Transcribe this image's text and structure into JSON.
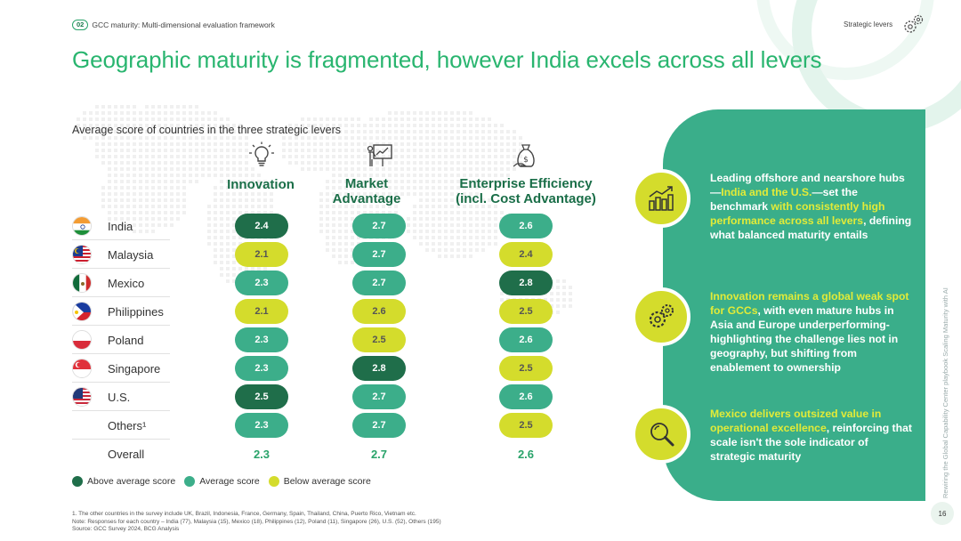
{
  "header": {
    "chapter_badge": "02",
    "chapter_title": "GCC maturity: Multi-dimensional evaluation framework",
    "section": "Strategic levers",
    "section_icon": "gears-icon"
  },
  "title": "Geographic maturity is fragmented, however India excels across all levers",
  "subtitle": "Average score of countries in the three strategic levers",
  "levers": [
    {
      "name": "Innovation",
      "icon": "lightbulb-icon"
    },
    {
      "name": "Market\nAdvantage",
      "line1": "Market",
      "line2": "Advantage",
      "icon": "presentation-chart-icon"
    },
    {
      "name": "Enterprise Efficiency (incl. Cost Advantage)",
      "line1": "Enterprise Efficiency",
      "line2": "(incl. Cost Advantage)",
      "icon": "money-bag-icon"
    }
  ],
  "countries": [
    {
      "name": "India",
      "flag": "india-flag",
      "scores": [
        {
          "value": "2.4",
          "level": "above"
        },
        {
          "value": "2.7",
          "level": "avg"
        },
        {
          "value": "2.6",
          "level": "avg"
        }
      ]
    },
    {
      "name": "Malaysia",
      "flag": "malaysia-flag",
      "scores": [
        {
          "value": "2.1",
          "level": "below"
        },
        {
          "value": "2.7",
          "level": "avg"
        },
        {
          "value": "2.4",
          "level": "below"
        }
      ]
    },
    {
      "name": "Mexico",
      "flag": "mexico-flag",
      "scores": [
        {
          "value": "2.3",
          "level": "avg"
        },
        {
          "value": "2.7",
          "level": "avg"
        },
        {
          "value": "2.8",
          "level": "above"
        }
      ]
    },
    {
      "name": "Philippines",
      "flag": "philippines-flag",
      "scores": [
        {
          "value": "2.1",
          "level": "below"
        },
        {
          "value": "2.6",
          "level": "below"
        },
        {
          "value": "2.5",
          "level": "below"
        }
      ]
    },
    {
      "name": "Poland",
      "flag": "poland-flag",
      "scores": [
        {
          "value": "2.3",
          "level": "avg"
        },
        {
          "value": "2.5",
          "level": "below"
        },
        {
          "value": "2.6",
          "level": "avg"
        }
      ]
    },
    {
      "name": "Singapore",
      "flag": "singapore-flag",
      "scores": [
        {
          "value": "2.3",
          "level": "avg"
        },
        {
          "value": "2.8",
          "level": "above"
        },
        {
          "value": "2.5",
          "level": "below"
        }
      ]
    },
    {
      "name": "U.S.",
      "flag": "us-flag",
      "scores": [
        {
          "value": "2.5",
          "level": "above"
        },
        {
          "value": "2.7",
          "level": "avg"
        },
        {
          "value": "2.6",
          "level": "avg"
        }
      ]
    },
    {
      "name": "Others¹",
      "flag": "",
      "scores": [
        {
          "value": "2.3",
          "level": "avg"
        },
        {
          "value": "2.7",
          "level": "avg"
        },
        {
          "value": "2.5",
          "level": "below"
        }
      ]
    }
  ],
  "overall": {
    "label": "Overall",
    "values": [
      "2.3",
      "2.7",
      "2.6"
    ]
  },
  "legend": {
    "above": "Above average score",
    "avg": "Average score",
    "below": "Below average score"
  },
  "colors": {
    "above": "#1f6e4a",
    "avg": "#3cae8a",
    "below": "#d4dc2c",
    "brand": "#29b56f"
  },
  "insights": [
    {
      "icon": "growth-chart-icon",
      "parts": [
        {
          "t": "Leading offshore and nearshore hubs—",
          "hl": false
        },
        {
          "t": "India and the U.S.",
          "hl": true
        },
        {
          "t": "—set the benchmark ",
          "hl": false
        },
        {
          "t": "with consistently high performance across all levers",
          "hl": true
        },
        {
          "t": ", defining what balanced maturity entails",
          "hl": false
        }
      ]
    },
    {
      "icon": "gears-icon",
      "parts": [
        {
          "t": "Innovation remains a global weak spot for GCCs",
          "hl": true
        },
        {
          "t": ", with even mature hubs in Asia and Europe underperforming-highlighting the challenge lies not in geography, but shifting from enablement to ownership",
          "hl": false
        }
      ]
    },
    {
      "icon": "magnifier-icon",
      "parts": [
        {
          "t": "Mexico delivers outsized value in operational excellence",
          "hl": true
        },
        {
          "t": ", reinforcing that scale isn't the sole indicator of strategic maturity",
          "hl": false
        }
      ]
    }
  ],
  "side_text": "Rewiring the Global Capability Center playbook Scaling Maturity with AI",
  "page_number": "16",
  "footnotes": [
    "1. The other countries in the survey include UK, Brazil, Indonesia, France, Germany, Spain, Thailand, China, Puerto Rico, Vietnam etc.",
    "Note: Responses for each country – India (77), Malaysia (15), Mexico (18), Philippines (12), Poland (11), Singapore (26), U.S. (52), Others (195)",
    "Source: GCC Survey 2024, BCG Analysis"
  ]
}
